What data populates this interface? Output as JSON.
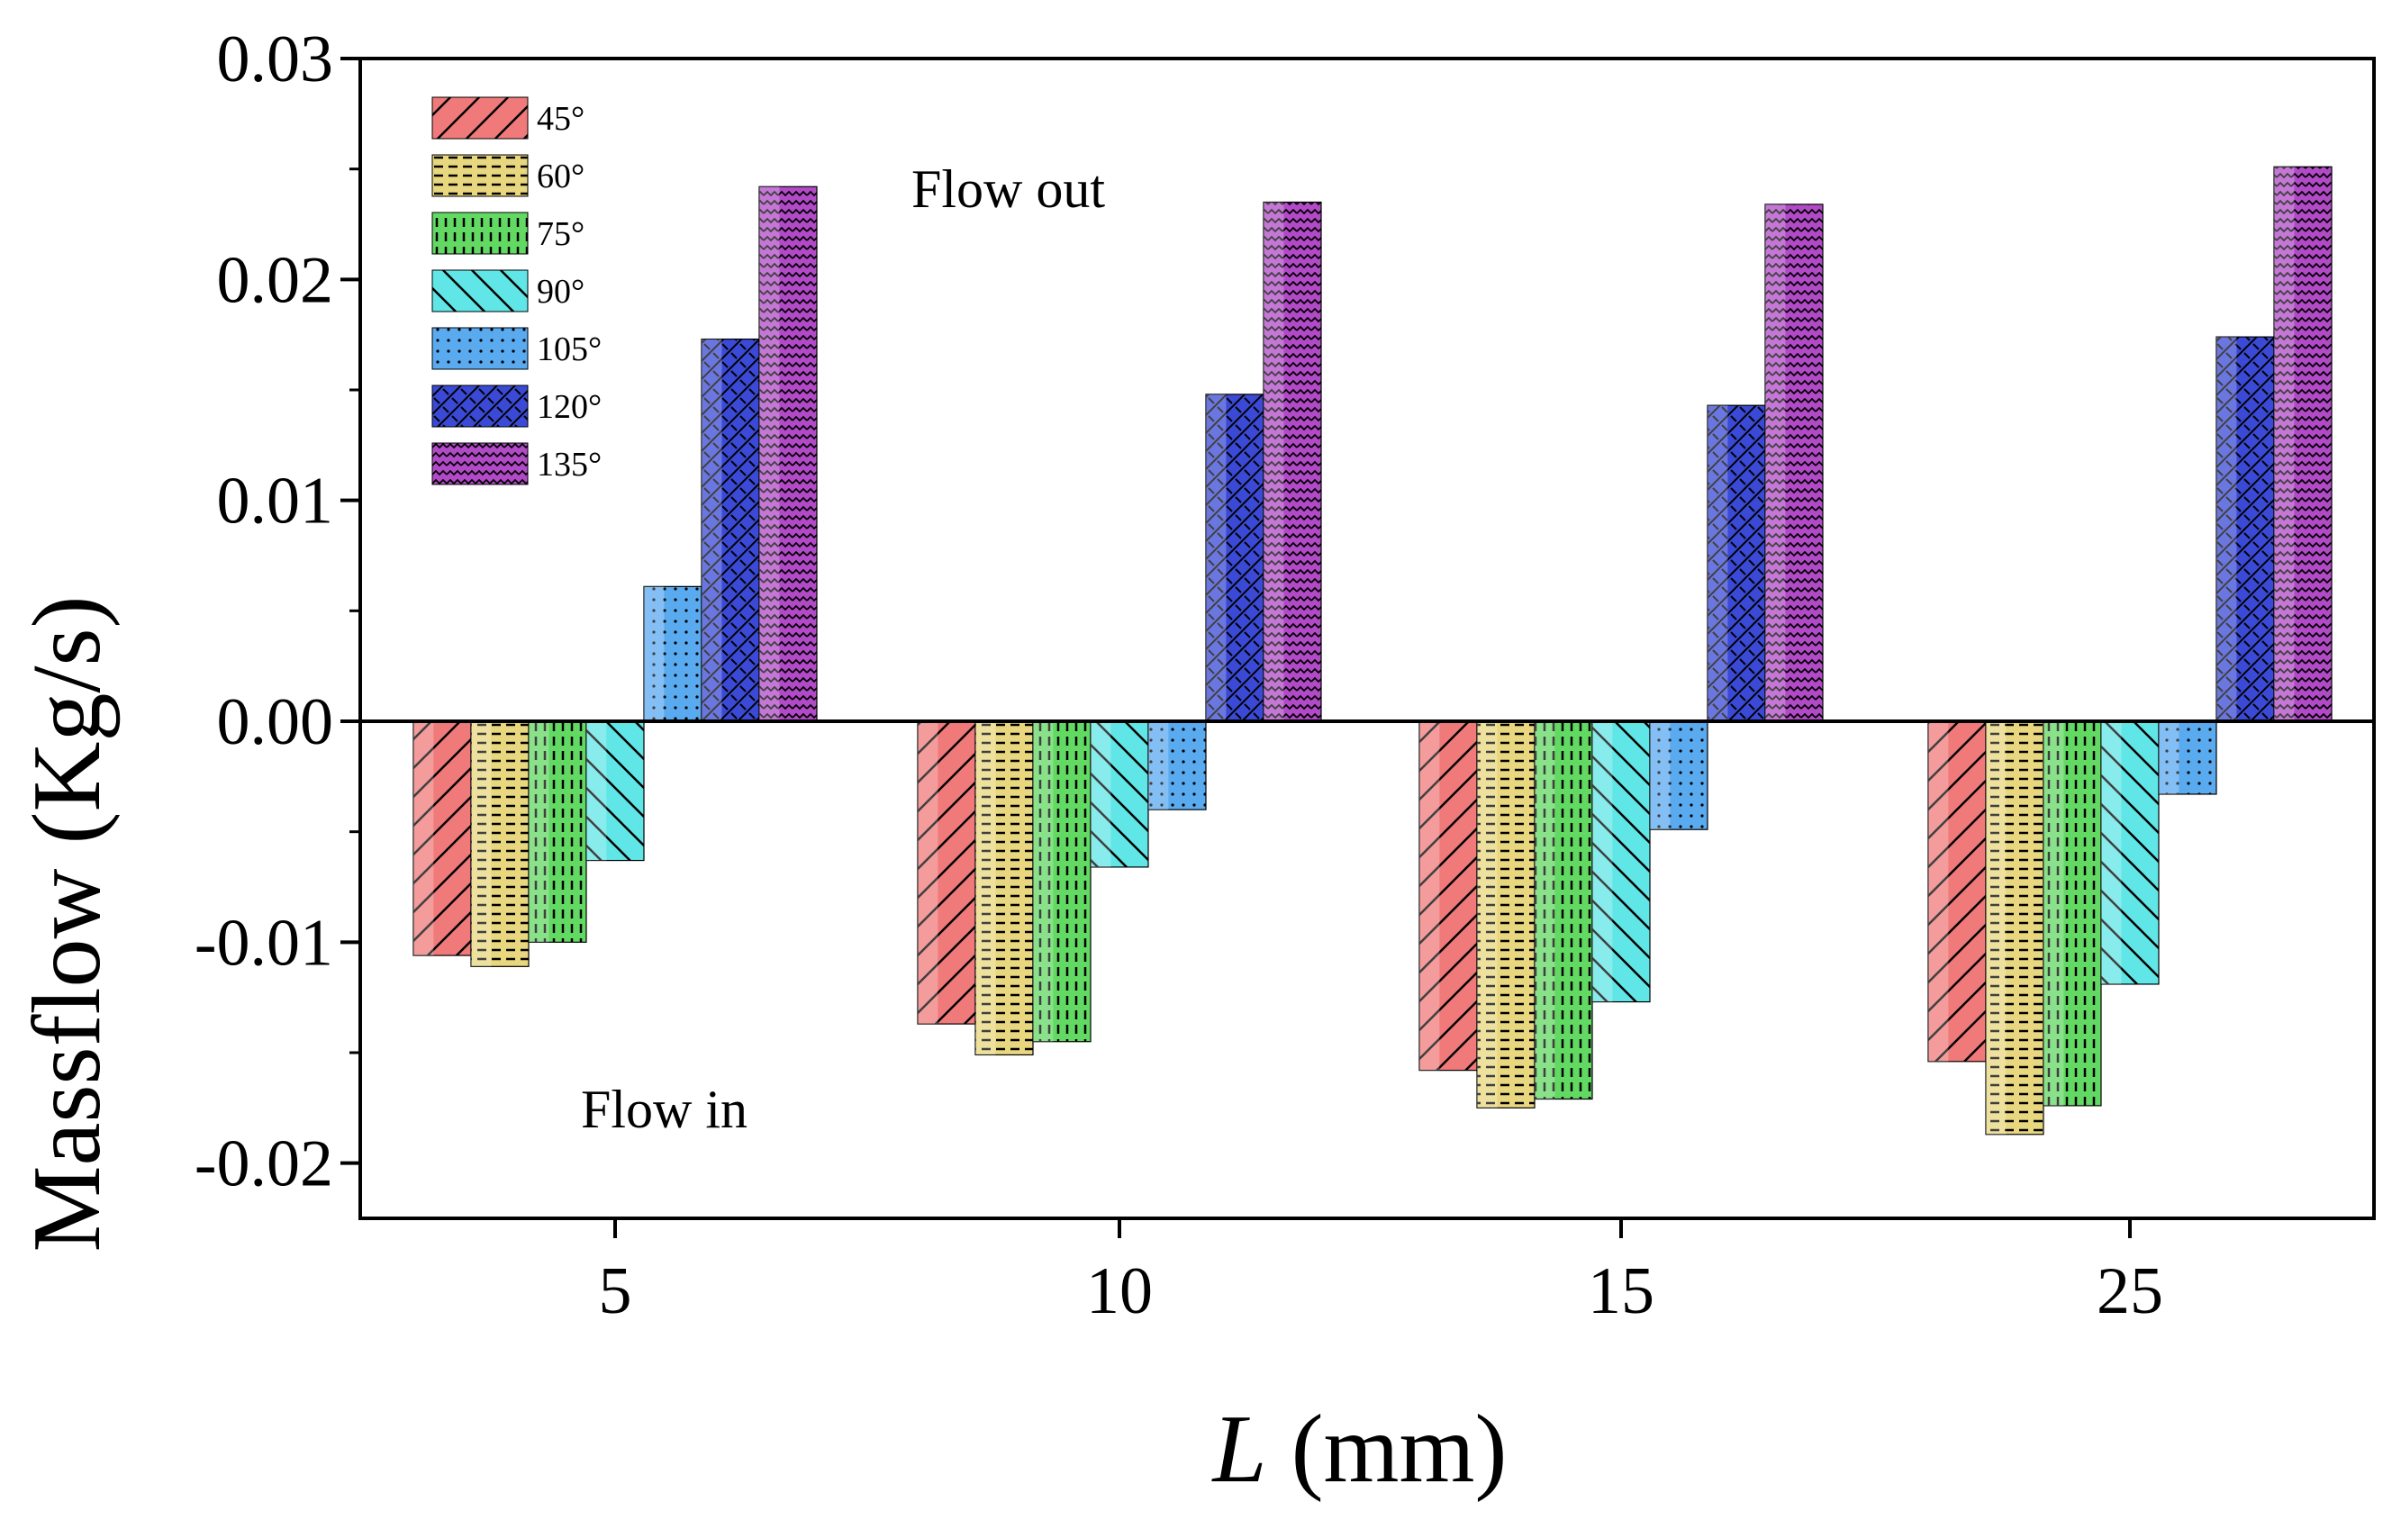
{
  "chart_data": {
    "type": "bar",
    "title": "",
    "xlabel_italic": "L",
    "xlabel_rest": " (mm)",
    "ylabel": "Massflow (Kg/s)",
    "categories": [
      "5",
      "10",
      "15",
      "25"
    ],
    "ylim": [
      -0.0225,
      0.03
    ],
    "yticks": [
      {
        "value": 0.03,
        "label": "0.03"
      },
      {
        "value": 0.02,
        "label": "0.02"
      },
      {
        "value": 0.01,
        "label": "0.01"
      },
      {
        "value": 0.0,
        "label": "0.00"
      },
      {
        "value": -0.01,
        "label": "-0.01"
      },
      {
        "value": -0.02,
        "label": "-0.02"
      }
    ],
    "series": [
      {
        "name": "45°",
        "color": "#f07a7a",
        "pattern": "diag-up",
        "values": [
          -0.0106,
          -0.0137,
          -0.0158,
          -0.0154
        ]
      },
      {
        "name": "60°",
        "color": "#e8d77e",
        "pattern": "dash-h",
        "values": [
          -0.0111,
          -0.0151,
          -0.0175,
          -0.0187
        ]
      },
      {
        "name": "75°",
        "color": "#62d962",
        "pattern": "dash-v",
        "values": [
          -0.01,
          -0.0145,
          -0.0171,
          -0.0174
        ]
      },
      {
        "name": "90°",
        "color": "#60e6e6",
        "pattern": "diag-down",
        "values": [
          -0.0063,
          -0.0066,
          -0.0127,
          -0.0119
        ]
      },
      {
        "name": "105°",
        "color": "#5aaaf0",
        "pattern": "dots",
        "values": [
          0.0061,
          -0.004,
          -0.0049,
          -0.0033
        ]
      },
      {
        "name": "120°",
        "color": "#3a4ad6",
        "pattern": "crosshatch",
        "values": [
          0.0173,
          0.0148,
          0.0143,
          0.0174
        ]
      },
      {
        "name": "135°",
        "color": "#b24ac8",
        "pattern": "zigzag",
        "values": [
          0.0242,
          0.0235,
          0.0234,
          0.0251
        ]
      }
    ],
    "annotations": [
      {
        "text": "Flow out",
        "x": 0.9,
        "y": 0.0242
      },
      {
        "text": "Flow in",
        "x": 0.6,
        "y": -0.0177
      }
    ],
    "legend": "top-left",
    "grid": false
  }
}
